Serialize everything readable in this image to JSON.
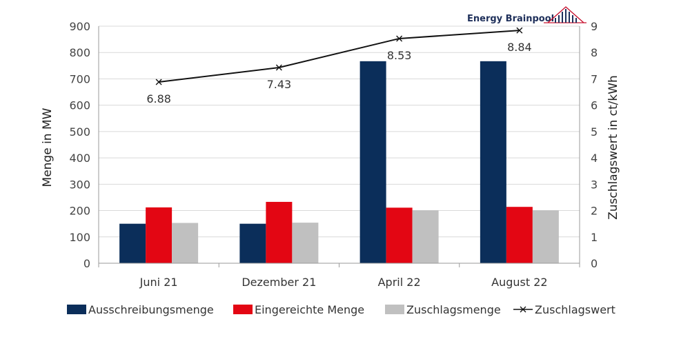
{
  "logo": {
    "text": "Energy Brainpool",
    "color_text": "#1e2f5a",
    "color_mark": "#c8102e"
  },
  "chart_data": {
    "type": "bar",
    "categories": [
      "Juni 21",
      "Dezember 21",
      "April 22",
      "August 22"
    ],
    "ylabel": "Menge in MW",
    "y2label": "Zuschlagswert in ct/kWh",
    "ylim": [
      0,
      900
    ],
    "y2lim": [
      0,
      9
    ],
    "yticks": [
      "0",
      "100",
      "200",
      "300",
      "400",
      "500",
      "600",
      "700",
      "800",
      "900"
    ],
    "y2ticks": [
      "0",
      "1",
      "2",
      "3",
      "4",
      "5",
      "6",
      "7",
      "8",
      "9"
    ],
    "grid": true,
    "legend_position": "bottom",
    "series": [
      {
        "name": "Ausschreibungsmenge",
        "type": "bar",
        "axis": "left",
        "color": "#0b2e5a",
        "values": [
          150,
          150,
          767,
          767
        ]
      },
      {
        "name": "Eingereichte Menge",
        "type": "bar",
        "axis": "left",
        "color": "#e30613",
        "values": [
          212,
          233,
          211,
          214
        ]
      },
      {
        "name": "Zuschlagsmenge",
        "type": "bar",
        "axis": "left",
        "color": "#c0c0c0",
        "values": [
          153,
          154,
          201,
          201
        ]
      },
      {
        "name": "Zuschlagswert",
        "type": "line",
        "axis": "right",
        "color": "#111111",
        "marker": "x",
        "values": [
          6.88,
          7.43,
          8.53,
          8.84
        ],
        "labels": [
          "6.88",
          "7.43",
          "8.53",
          "8.84"
        ]
      }
    ]
  }
}
